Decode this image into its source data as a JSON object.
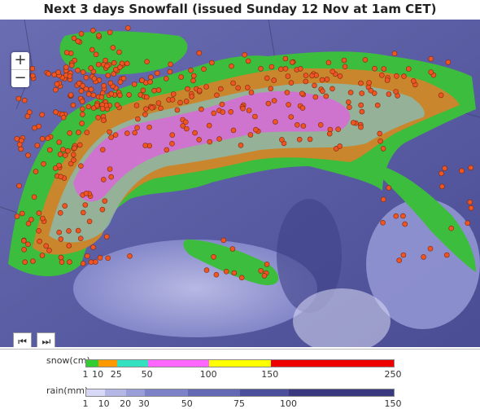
{
  "title": "Next 3 days Snowfall (issued Sunday 12 Nov at 1am CET)",
  "zoom": {
    "in": "+",
    "out": "−"
  },
  "nav": {
    "first": "⏮",
    "next": "⏭"
  },
  "legend": {
    "snow_label": "snow(cm)",
    "snow_ticks": [
      "1",
      "10",
      "25",
      "50",
      "100",
      "150",
      "250"
    ],
    "snow_colors": [
      "#33cc33",
      "#ff9900",
      "#33e0c0",
      "#ff66ff",
      "#ffff00",
      "#ee0000"
    ],
    "rain_label": "rain(mm)",
    "rain_ticks": [
      "1",
      "10",
      "20",
      "30",
      "50",
      "75",
      "100",
      "150"
    ],
    "rain_colors": [
      "#d6d8f6",
      "#b4b7e6",
      "#9a9ed8",
      "#7d82c8",
      "#6469b4",
      "#4b4f9c",
      "#38397e"
    ]
  },
  "colors": {
    "sea": "#5b5fa3",
    "lowland": "#6b6fb8",
    "snow_green": "#3dbd3d",
    "snow_orange": "#c9862c",
    "snow_magenta": "#d86ad8",
    "marker": "#ee5522"
  }
}
